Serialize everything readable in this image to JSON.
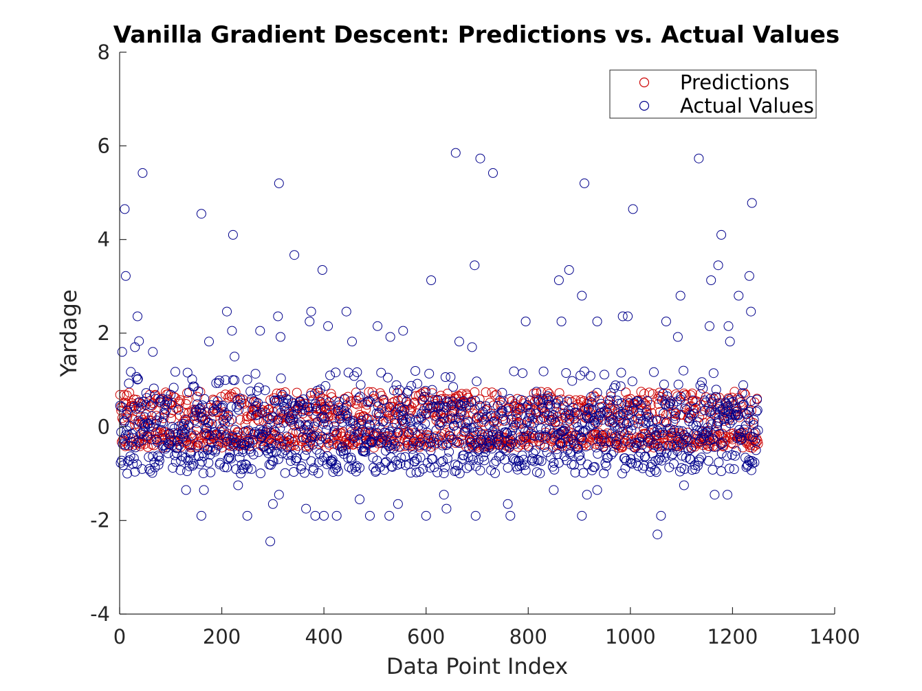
{
  "chart_data": {
    "type": "scatter",
    "title": "Vanilla Gradient Descent: Predictions vs. Actual Values",
    "xlabel": "Data Point Index",
    "ylabel": "Yardage",
    "xlim": [
      0,
      1400
    ],
    "ylim": [
      -4,
      8
    ],
    "xticks": [
      0,
      200,
      400,
      600,
      800,
      1000,
      1200,
      1400
    ],
    "yticks": [
      -4,
      -2,
      0,
      2,
      4,
      6,
      8
    ],
    "legend_position": "top-right",
    "grid": false,
    "n_points": 1250,
    "series": [
      {
        "name": "Predictions",
        "color": "#cc0000",
        "marker": "open-circle",
        "core_range": [
          -0.55,
          0.8
        ],
        "outliers": []
      },
      {
        "name": "Actual Values",
        "color": "#00008b",
        "marker": "open-circle",
        "core_range": [
          -1.0,
          0.6
        ],
        "outliers": [
          {
            "x": 10,
            "y": 4.65
          },
          {
            "x": 12,
            "y": 3.22
          },
          {
            "x": 45,
            "y": 5.42
          },
          {
            "x": 35,
            "y": 2.36
          },
          {
            "x": 38,
            "y": 1.83
          },
          {
            "x": 5,
            "y": 1.6
          },
          {
            "x": 30,
            "y": 1.7
          },
          {
            "x": 65,
            "y": 1.6
          },
          {
            "x": 160,
            "y": 4.55
          },
          {
            "x": 222,
            "y": 4.1
          },
          {
            "x": 210,
            "y": 2.46
          },
          {
            "x": 220,
            "y": 2.05
          },
          {
            "x": 175,
            "y": 1.82
          },
          {
            "x": 225,
            "y": 1.5
          },
          {
            "x": 312,
            "y": 5.2
          },
          {
            "x": 310,
            "y": 2.36
          },
          {
            "x": 315,
            "y": 1.92
          },
          {
            "x": 275,
            "y": 2.05
          },
          {
            "x": 342,
            "y": 3.67
          },
          {
            "x": 397,
            "y": 3.35
          },
          {
            "x": 375,
            "y": 2.46
          },
          {
            "x": 372,
            "y": 2.25
          },
          {
            "x": 408,
            "y": 2.15
          },
          {
            "x": 444,
            "y": 2.46
          },
          {
            "x": 455,
            "y": 1.82
          },
          {
            "x": 505,
            "y": 2.15
          },
          {
            "x": 555,
            "y": 2.05
          },
          {
            "x": 530,
            "y": 1.92
          },
          {
            "x": 658,
            "y": 5.85
          },
          {
            "x": 706,
            "y": 5.73
          },
          {
            "x": 731,
            "y": 5.42
          },
          {
            "x": 610,
            "y": 3.13
          },
          {
            "x": 695,
            "y": 3.45
          },
          {
            "x": 665,
            "y": 1.82
          },
          {
            "x": 690,
            "y": 1.7
          },
          {
            "x": 910,
            "y": 5.2
          },
          {
            "x": 1005,
            "y": 4.65
          },
          {
            "x": 880,
            "y": 3.35
          },
          {
            "x": 860,
            "y": 3.13
          },
          {
            "x": 905,
            "y": 2.8
          },
          {
            "x": 795,
            "y": 2.25
          },
          {
            "x": 865,
            "y": 2.25
          },
          {
            "x": 985,
            "y": 2.36
          },
          {
            "x": 995,
            "y": 2.36
          },
          {
            "x": 935,
            "y": 2.25
          },
          {
            "x": 1098,
            "y": 2.8
          },
          {
            "x": 1134,
            "y": 5.73
          },
          {
            "x": 1238,
            "y": 4.78
          },
          {
            "x": 1178,
            "y": 4.1
          },
          {
            "x": 1172,
            "y": 3.45
          },
          {
            "x": 1158,
            "y": 3.13
          },
          {
            "x": 1233,
            "y": 3.22
          },
          {
            "x": 1212,
            "y": 2.8
          },
          {
            "x": 1236,
            "y": 2.46
          },
          {
            "x": 1070,
            "y": 2.25
          },
          {
            "x": 1093,
            "y": 1.92
          },
          {
            "x": 1155,
            "y": 2.15
          },
          {
            "x": 1192,
            "y": 2.15
          },
          {
            "x": 1195,
            "y": 1.82
          },
          {
            "x": 15,
            "y": -1.0
          },
          {
            "x": 160,
            "y": -1.9
          },
          {
            "x": 165,
            "y": -1.35
          },
          {
            "x": 250,
            "y": -1.9
          },
          {
            "x": 295,
            "y": -2.45
          },
          {
            "x": 300,
            "y": -1.65
          },
          {
            "x": 312,
            "y": -1.45
          },
          {
            "x": 365,
            "y": -1.75
          },
          {
            "x": 383,
            "y": -1.9
          },
          {
            "x": 400,
            "y": -1.9
          },
          {
            "x": 425,
            "y": -1.9
          },
          {
            "x": 470,
            "y": -1.55
          },
          {
            "x": 490,
            "y": -1.9
          },
          {
            "x": 528,
            "y": -1.9
          },
          {
            "x": 545,
            "y": -1.65
          },
          {
            "x": 600,
            "y": -1.9
          },
          {
            "x": 635,
            "y": -1.45
          },
          {
            "x": 640,
            "y": -1.75
          },
          {
            "x": 697,
            "y": -1.9
          },
          {
            "x": 760,
            "y": -1.65
          },
          {
            "x": 765,
            "y": -1.9
          },
          {
            "x": 905,
            "y": -1.9
          },
          {
            "x": 915,
            "y": -1.45
          },
          {
            "x": 935,
            "y": -1.35
          },
          {
            "x": 1053,
            "y": -2.3
          },
          {
            "x": 1060,
            "y": -1.9
          },
          {
            "x": 1165,
            "y": -1.45
          },
          {
            "x": 1190,
            "y": -1.45
          },
          {
            "x": 130,
            "y": -1.35
          },
          {
            "x": 232,
            "y": -1.25
          },
          {
            "x": 850,
            "y": -1.35
          },
          {
            "x": 1105,
            "y": -1.25
          }
        ]
      }
    ]
  }
}
